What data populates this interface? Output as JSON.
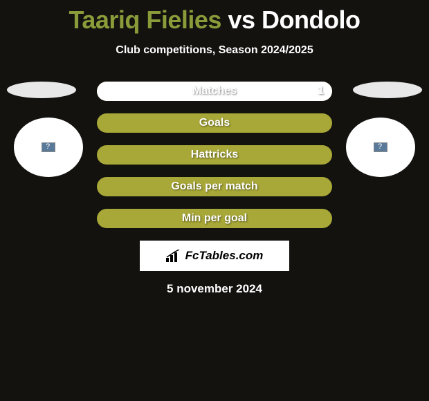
{
  "title": {
    "player1": "Taariq Fielies",
    "vs": "vs",
    "player2": "Dondolo"
  },
  "subtitle": "Club competitions, Season 2024/2025",
  "colors": {
    "player1_accent": "#8a9b3a",
    "bar_fill": "#a8a838",
    "bar_white": "#ffffff",
    "background": "#13120f"
  },
  "stats": [
    {
      "label": "Matches",
      "left_value": "",
      "right_value": "1",
      "left_pct": 0,
      "right_pct": 100
    },
    {
      "label": "Goals",
      "left_value": "",
      "right_value": "",
      "left_pct": 100,
      "right_pct": 0
    },
    {
      "label": "Hattricks",
      "left_value": "",
      "right_value": "",
      "left_pct": 100,
      "right_pct": 0
    },
    {
      "label": "Goals per match",
      "left_value": "",
      "right_value": "",
      "left_pct": 100,
      "right_pct": 0
    },
    {
      "label": "Min per goal",
      "left_value": "",
      "right_value": "",
      "left_pct": 100,
      "right_pct": 0
    }
  ],
  "branding": "FcTables.com",
  "date": "5 november 2024"
}
